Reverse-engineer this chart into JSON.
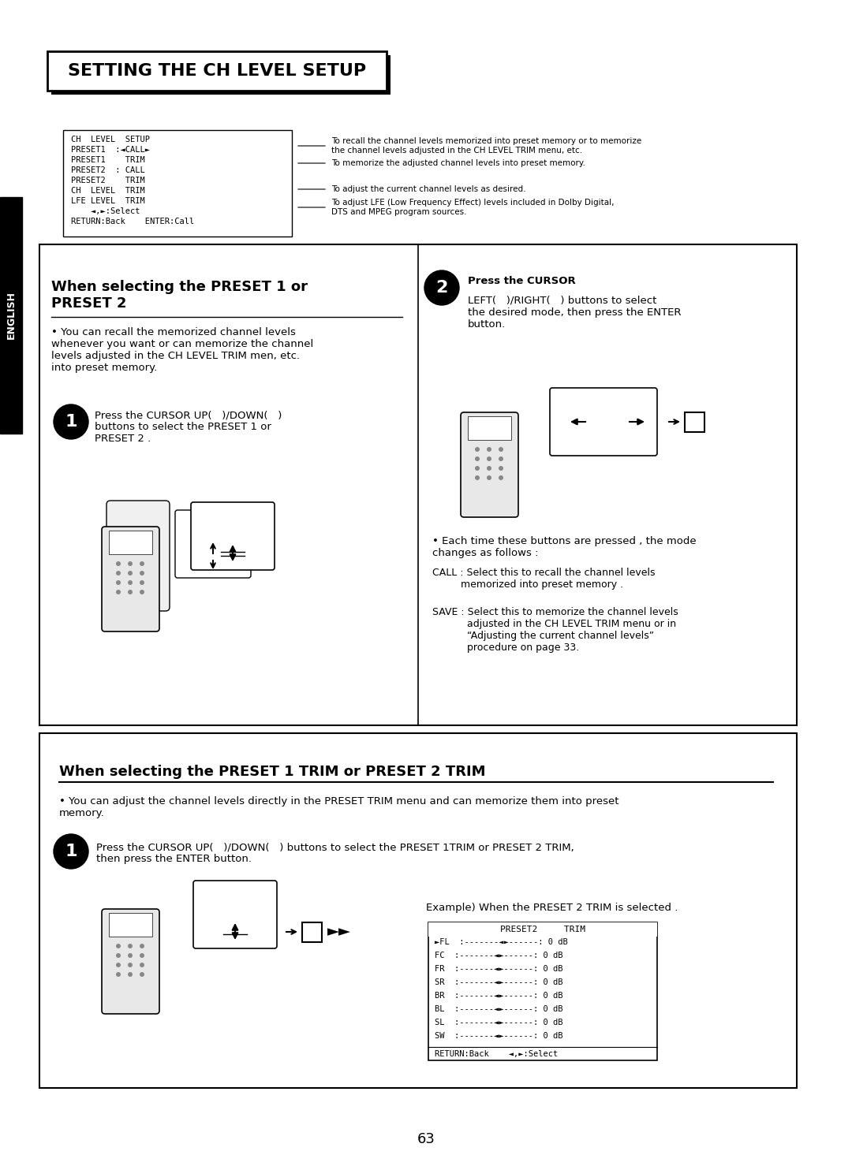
{
  "bg_color": "#ffffff",
  "page_number": "63",
  "title": "SETTING THE CH LEVEL SETUP",
  "section1_header": "When selecting the PRESET 1 or\nPRESET 2",
  "section2_header": "When selecting the PRESET 1 TRIM or PRESET 2 TRIM",
  "english_label": "ENGLISH",
  "menu_lines": [
    "CH  LEVEL  SETUP",
    "PRESET1  :◄CALL►",
    "PRESET1    TRIM",
    "PRESET2  : CALL",
    "PRESET2    TRIM",
    "CH  LEVEL  TRIM",
    "LFE LEVEL  TRIM",
    "    ◄,►:Select",
    "RETURN:Back    ENTER:Call"
  ],
  "annotation1": "To recall the channel levels memorized into preset memory or to memorize\nthe channel levels adjusted in the CH LEVEL TRIM menu, etc.",
  "annotation2": "To memorize the adjusted channel levels into preset memory.",
  "annotation3": "To adjust the current channel levels as desired.",
  "annotation4": "To adjust LFE (Low Frequency Effect) levels included in Dolby Digital,\nDTS and MPEG program sources.",
  "sec1_bullet": "• You can recall the memorized channel levels\nwhenever you want or can memorize the channel\nlevels adjusted in the CH LEVEL TRIM men, etc.\ninto preset memory.",
  "step1_sec1": "Press the CURSOR UP(   )/DOWN(   )\nbuttons to select the PRESET 1 or\nPRESET 2 .",
  "step2_sec1_title": "Press the CURSOR",
  "step2_sec1_body": "LEFT(   )/RIGHT(   ) buttons to select\nthe desired mode, then press the ENTER\nbutton.",
  "bullet_sec1_2": "• Each time these buttons are pressed , the mode\nchanges as follows :",
  "call_desc": "CALL : Select this to recall the channel levels\n         memorized into preset memory .",
  "save_desc": "SAVE : Select this to memorize the channel levels\n           adjusted in the CH LEVEL TRIM menu or in\n           “Adjusting the current channel levels”\n           procedure on page 33.",
  "sec2_bullet": "• You can adjust the channel levels directly in the PRESET TRIM menu and can memorize them into preset\nmemory.",
  "step1_sec2": "Press the CURSOR UP(   )/DOWN(   ) buttons to select the PRESET 1TRIM or PRESET 2 TRIM,\nthen press the ENTER button.",
  "example_label": "Example) When the PRESET 2 TRIM is selected .",
  "trim_menu_title": "PRESET2     TRIM",
  "trim_menu_rows": [
    "►FL  :-------◄►------: 0 dB",
    "FC  :-------◄►------: 0 dB",
    "FR  :-------◄►------: 0 dB",
    "SR  :-------◄►------: 0 dB",
    "BR  :-------◄►------: 0 dB",
    "BL  :-------◄►------: 0 dB",
    "SL  :-------◄►------: 0 dB",
    "SW  :-------◄►------: 0 dB"
  ],
  "trim_menu_bottom": "RETURN:Back    ◄,►:Select"
}
